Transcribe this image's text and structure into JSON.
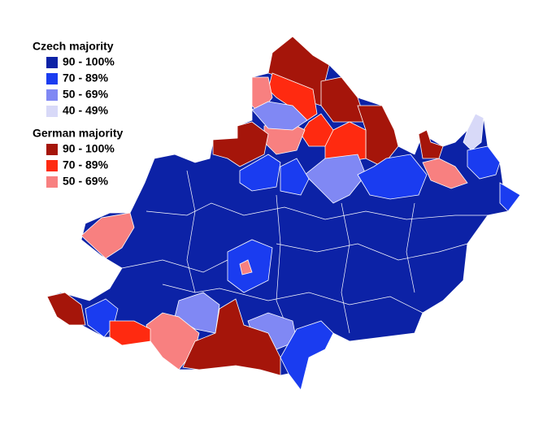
{
  "legend": {
    "groups": [
      {
        "title": "Czech majority",
        "items": [
          {
            "label": "90 - 100%",
            "color": "#0c22a6"
          },
          {
            "label": "70 - 89%",
            "color": "#1a3cf0"
          },
          {
            "label": "50 - 69%",
            "color": "#8088f4"
          },
          {
            "label": "40 - 49%",
            "color": "#d8d9f8"
          }
        ]
      },
      {
        "title": "German majority",
        "items": [
          {
            "label": "90 - 100%",
            "color": "#a5150a"
          },
          {
            "label": "70 - 89%",
            "color": "#ff2a10"
          },
          {
            "label": "50 - 69%",
            "color": "#f88080"
          }
        ]
      }
    ]
  }
}
